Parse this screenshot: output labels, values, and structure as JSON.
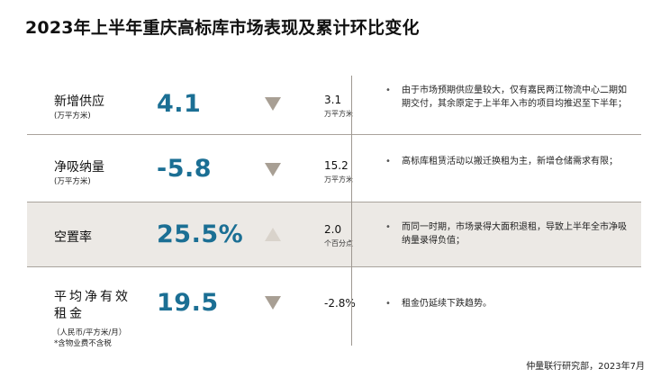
{
  "title": "2023年上半年重庆高标库市场表现及累计环比变化",
  "rows": [
    {
      "label": "新增供应",
      "unit": "(万平方米)",
      "value": "4.1",
      "direction": "down",
      "change": "3.1",
      "change_unit": "万平方米",
      "comment": "由于市场预期供应量较大，仅有嘉民两江物流中心二期如期交付，其余原定于上半年入市的项目均推迟至下半年；"
    },
    {
      "label": "净吸纳量",
      "unit": "(万平方米)",
      "value": "-5.8",
      "direction": "down",
      "change": "15.2",
      "change_unit": "万平方米",
      "comment": "高标库租赁活动以搬迁换租为主，新增仓储需求有限；"
    },
    {
      "label": "空置率",
      "unit": "",
      "value": "25.5%",
      "direction": "up",
      "change": "2.0",
      "change_unit": "个百分点",
      "comment": "而同一时期，市场录得大面积退租，导致上半年全市净吸纳量录得负值；"
    },
    {
      "label": "平均净有效租金",
      "unit": "（人民币/平方米/月）",
      "note": "*含物业费不含税",
      "value": "19.5",
      "direction": "down",
      "change": "-2.8%",
      "change_unit": "",
      "comment": "租金仍延续下跌趋势。"
    }
  ],
  "colors": {
    "value": "#1b6f94",
    "arrow_down": "#a89f94",
    "arrow_up": "#d9d3cb",
    "shade": "#ece9e5"
  },
  "source": "仲量联行研究部，2023年7月"
}
